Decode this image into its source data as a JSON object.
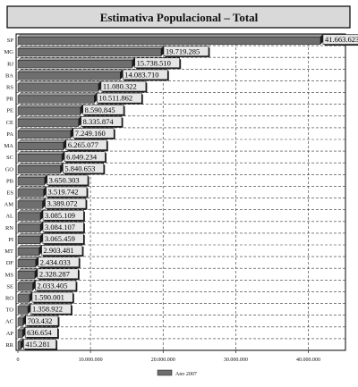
{
  "chart_data": {
    "type": "bar",
    "orientation": "horizontal",
    "title": "Estimativa Populacional – Total",
    "categories": [
      "SP",
      "MG",
      "RJ",
      "BA",
      "RS",
      "PR",
      "PE",
      "CE",
      "PA",
      "MA",
      "SC",
      "GO",
      "PB",
      "ES",
      "AM",
      "AL",
      "RN",
      "PI",
      "MT",
      "DF",
      "MS",
      "SE",
      "RO",
      "TO",
      "AC",
      "AP",
      "RR"
    ],
    "series": [
      {
        "name": "Ano 2007",
        "values": [
          41663623,
          19719285,
          15738510,
          14083710,
          11080322,
          10511862,
          8590845,
          8335874,
          7249160,
          6265077,
          6049234,
          5840653,
          3650303,
          3519742,
          3389072,
          3085109,
          3084107,
          3065459,
          2903481,
          2434033,
          2328287,
          2033405,
          1590001,
          1358922,
          703432,
          636654,
          415281
        ],
        "labels": [
          "41.663.623",
          "19.719.285",
          "15.738.510",
          "14.083.710",
          "11.080.322",
          "10.511.862",
          "8.590.845",
          "8.335.874",
          "7.249.160",
          "6.265.077",
          "6.049.234",
          "5.840.653",
          "3.650.303",
          "3.519.742",
          "3.389.072",
          "3.085.109",
          "3.084.107",
          "3.065.459",
          "2.903.481",
          "2.434.033",
          "2.328.287",
          "2.033.405",
          "1.590.001",
          "1.358.922",
          "703.432",
          "636.654",
          "415.281"
        ]
      }
    ],
    "xlim": [
      0,
      45000000
    ],
    "xticks": [
      0,
      10000000,
      20000000,
      30000000,
      40000000
    ],
    "xtick_labels": [
      "0",
      "10.000.000",
      "20.000.000",
      "30.000.000",
      "40.000.000"
    ],
    "grid": true,
    "legend_position": "bottom-center",
    "colors": {
      "bar": "#6e6e6e",
      "bar_top": "#9a9a9a",
      "bar_edge": "#1a1a1a",
      "title_bg": "#d9d9d9",
      "label_bg": "#e6e6e6",
      "frame": "#000000"
    }
  }
}
